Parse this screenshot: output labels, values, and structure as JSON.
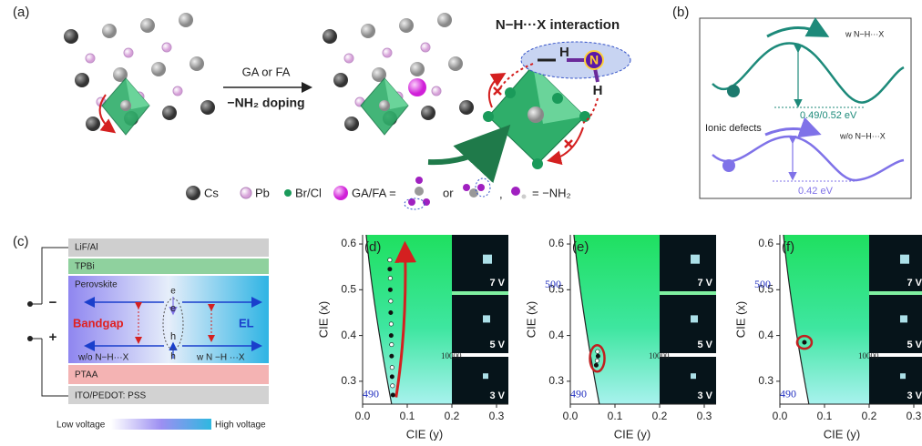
{
  "panel_a": {
    "label": "(a)",
    "arrow_top": "GA or FA",
    "arrow_bottom": "−NH₂ doping",
    "interaction": "N−H···X interaction",
    "atoms": [
      "H",
      "N",
      "H"
    ],
    "legend": {
      "cs": "Cs",
      "pb": "Pb",
      "brcl": "Br/Cl",
      "gafa": "GA/FA =",
      "or": "or",
      "comma": ",",
      "nh2": "= −NH₂"
    }
  },
  "panel_b": {
    "label": "(b)",
    "with": "w N−H···X",
    "barrier_with": "0.49/0.52 eV",
    "defects": "Ionic defects",
    "without": "w/o N−H···X",
    "barrier_without": "0.42 eV"
  },
  "panel_c": {
    "label": "(c)",
    "layers": [
      "LiF/Al",
      "TPBi",
      "Perovskite",
      "PTAA",
      "ITO/PEDOT: PSS"
    ],
    "electron": "e",
    "hole": "h",
    "bandgap": "Bandgap",
    "el": "EL",
    "without": "w/o N−H···X",
    "with": "w N −H ···X",
    "minus": "−",
    "plus": "+",
    "low": "Low voltage",
    "high": "High voltage"
  },
  "cie_plots": [
    {
      "label": "(d)",
      "yticks": [
        "0.3",
        "0.4",
        "0.5",
        "0.6"
      ],
      "xticks": [
        "0.0",
        "0.1",
        "0.2",
        "0.3"
      ],
      "xlabel": "CIE (y)",
      "ylabel": "CIE (x)",
      "wavelengths": [
        "490"
      ],
      "inset_scale": "10000",
      "voltages": [
        "7 V",
        "5 V",
        "3 V"
      ],
      "points": {
        "x": [
          0.068,
          0.067,
          0.066,
          0.066,
          0.065,
          0.065,
          0.064,
          0.064,
          0.063,
          0.063,
          0.062,
          0.062,
          0.061,
          0.061
        ],
        "y": [
          0.27,
          0.29,
          0.31,
          0.33,
          0.355,
          0.38,
          0.4,
          0.425,
          0.45,
          0.475,
          0.5,
          0.525,
          0.545,
          0.565
        ]
      }
    },
    {
      "label": "(e)",
      "yticks": [
        "0.3",
        "0.4",
        "0.5",
        "0.6"
      ],
      "xticks": [
        "0.0",
        "0.1",
        "0.2",
        "0.3"
      ],
      "xlabel": "CIE (y)",
      "ylabel": "CIE (x)",
      "wavelengths": [
        "490",
        "500"
      ],
      "inset_scale": "10000",
      "voltages": [
        "7 V",
        "5 V",
        "3 V"
      ],
      "points": {
        "x": [
          0.058,
          0.06,
          0.062,
          0.061
        ],
        "y": [
          0.335,
          0.345,
          0.355,
          0.365
        ]
      }
    },
    {
      "label": "(f)",
      "yticks": [
        "0.3",
        "0.4",
        "0.5",
        "0.6"
      ],
      "xticks": [
        "0.0",
        "0.1",
        "0.2",
        "0.3"
      ],
      "xlabel": "CIE (y)",
      "ylabel": "CIE (x)",
      "wavelengths": [
        "490",
        "500"
      ],
      "inset_scale": "10000",
      "voltages": [
        "7 V",
        "5 V",
        "3 V"
      ],
      "points": {
        "x": [
          0.055
        ],
        "y": [
          0.385
        ]
      }
    }
  ]
}
